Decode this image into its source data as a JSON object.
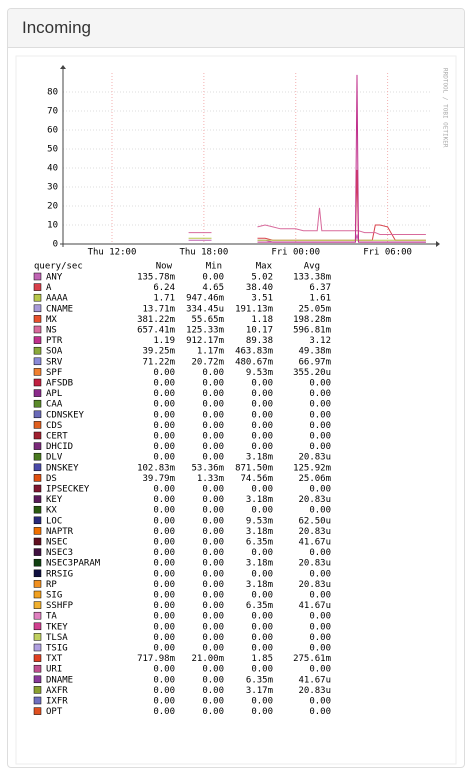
{
  "panel_title": "Incoming",
  "chart_data": {
    "type": "line",
    "watermark": "RRDTOOL / TOBI OETIKER",
    "xlim": [
      8.8,
      32.9
    ],
    "xticks": [
      {
        "value": 12,
        "label": "Thu 12:00"
      },
      {
        "value": 18,
        "label": "Thu 18:00"
      },
      {
        "value": 24,
        "label": "Fri 00:00"
      },
      {
        "value": 30,
        "label": "Fri 06:00"
      }
    ],
    "ylim": [
      0,
      90
    ],
    "yticks": [
      0,
      10,
      20,
      30,
      40,
      50,
      60,
      70,
      80
    ],
    "grid": true,
    "x": [
      17,
      17.5,
      18,
      18.5,
      19,
      21.5,
      22,
      22.5,
      23,
      23.5,
      24,
      24.5,
      25,
      25.4,
      25.55,
      25.7,
      26,
      26.5,
      27,
      27.5,
      27.9,
      28.0,
      28.1,
      28.5,
      29,
      29.2,
      29.5,
      30,
      30.5,
      31,
      31.5,
      32,
      32.5
    ],
    "legend_header": [
      "query/sec",
      "Now",
      "Min",
      "Max",
      "Avg"
    ],
    "series": [
      {
        "name": "ANY",
        "color": "#c064b4",
        "now": "135.78m",
        "min": "0.00",
        "max": "5.02",
        "avg": "133.38m",
        "values": [
          2,
          2,
          2,
          2,
          null,
          2,
          2,
          1,
          1,
          1,
          1,
          1,
          1,
          1,
          1,
          1,
          1,
          1,
          1,
          1,
          1,
          5,
          1,
          1,
          1,
          1,
          1,
          1,
          1,
          1,
          1,
          1,
          1
        ]
      },
      {
        "name": "A",
        "color": "#d8404a",
        "now": "6.24",
        "min": "4.65",
        "max": "38.40",
        "avg": "6.37",
        "values": [
          null,
          null,
          null,
          null,
          null,
          3,
          3,
          2,
          2,
          2,
          2,
          2,
          2,
          2,
          2,
          2,
          2,
          2,
          2,
          2,
          2,
          39,
          2,
          2,
          2,
          10,
          10,
          9,
          2,
          2,
          2,
          2,
          2
        ]
      },
      {
        "name": "AAAA",
        "color": "#b8c84c",
        "now": "1.71",
        "min": "947.46m",
        "max": "3.51",
        "avg": "1.61",
        "values": [
          3,
          3,
          3,
          3,
          null,
          2,
          2,
          2,
          2,
          2,
          2,
          2,
          2,
          2,
          2,
          2,
          2,
          2,
          2,
          2,
          2,
          2,
          2,
          2,
          2,
          2,
          2,
          2,
          2,
          2,
          2,
          2,
          2
        ]
      },
      {
        "name": "CNAME",
        "color": "#a89ad8",
        "now": "13.71m",
        "min": "334.45u",
        "max": "191.13m",
        "avg": "25.05m"
      },
      {
        "name": "MX",
        "color": "#e8502c",
        "now": "381.22m",
        "min": "55.65m",
        "max": "1.18",
        "avg": "198.28m"
      },
      {
        "name": "NS",
        "color": "#d86a9c",
        "now": "657.41m",
        "min": "125.33m",
        "max": "10.17",
        "avg": "596.81m",
        "values": [
          6,
          6,
          6,
          6,
          null,
          9,
          10,
          9,
          8,
          8,
          8,
          7,
          7,
          7,
          19,
          7,
          7,
          7,
          7,
          7,
          7,
          7,
          7,
          6,
          6,
          6,
          5,
          5,
          5,
          5,
          5,
          5,
          5
        ]
      },
      {
        "name": "PTR",
        "color": "#c0308c",
        "now": "1.19",
        "min": "912.17m",
        "max": "89.38",
        "avg": "3.12",
        "values": [
          null,
          null,
          null,
          null,
          null,
          1,
          1,
          1,
          1,
          1,
          1,
          1,
          1,
          1,
          1,
          1,
          1,
          1,
          1,
          1,
          1,
          89,
          1,
          1,
          1,
          1,
          1,
          1,
          1,
          1,
          1,
          1,
          1
        ]
      },
      {
        "name": "SOA",
        "color": "#8aa83c",
        "now": "39.25m",
        "min": "1.17m",
        "max": "463.83m",
        "avg": "49.38m"
      },
      {
        "name": "SRV",
        "color": "#8a8ad8",
        "now": "71.22m",
        "min": "20.72m",
        "max": "480.67m",
        "avg": "66.97m"
      },
      {
        "name": "SPF",
        "color": "#f08030",
        "now": "0.00",
        "min": "0.00",
        "max": "9.53m",
        "avg": "355.20u"
      },
      {
        "name": "AFSDB",
        "color": "#c02040",
        "now": "0.00",
        "min": "0.00",
        "max": "0.00",
        "avg": "0.00"
      },
      {
        "name": "APL",
        "color": "#8a2a8a",
        "now": "0.00",
        "min": "0.00",
        "max": "0.00",
        "avg": "0.00"
      },
      {
        "name": "CAA",
        "color": "#5a8a2a",
        "now": "0.00",
        "min": "0.00",
        "max": "0.00",
        "avg": "0.00"
      },
      {
        "name": "CDNSKEY",
        "color": "#6a6ab8",
        "now": "0.00",
        "min": "0.00",
        "max": "0.00",
        "avg": "0.00"
      },
      {
        "name": "CDS",
        "color": "#e06020",
        "now": "0.00",
        "min": "0.00",
        "max": "0.00",
        "avg": "0.00"
      },
      {
        "name": "CERT",
        "color": "#a02030",
        "now": "0.00",
        "min": "0.00",
        "max": "0.00",
        "avg": "0.00"
      },
      {
        "name": "DHCID",
        "color": "#7a2a7a",
        "now": "0.00",
        "min": "0.00",
        "max": "0.00",
        "avg": "0.00"
      },
      {
        "name": "DLV",
        "color": "#4a7a20",
        "now": "0.00",
        "min": "0.00",
        "max": "3.18m",
        "avg": "20.83u"
      },
      {
        "name": "DNSKEY",
        "color": "#4a4aa8",
        "now": "102.83m",
        "min": "53.36m",
        "max": "871.50m",
        "avg": "125.92m"
      },
      {
        "name": "DS",
        "color": "#e05010",
        "now": "39.79m",
        "min": "1.33m",
        "max": "74.56m",
        "avg": "25.06m"
      },
      {
        "name": "IPSECKEY",
        "color": "#801830",
        "now": "0.00",
        "min": "0.00",
        "max": "0.00",
        "avg": "0.00"
      },
      {
        "name": "KEY",
        "color": "#5a1a5a",
        "now": "0.00",
        "min": "0.00",
        "max": "3.18m",
        "avg": "20.83u"
      },
      {
        "name": "KX",
        "color": "#2a5a10",
        "now": "0.00",
        "min": "0.00",
        "max": "0.00",
        "avg": "0.00"
      },
      {
        "name": "LOC",
        "color": "#2a2a7a",
        "now": "0.00",
        "min": "0.00",
        "max": "9.53m",
        "avg": "62.50u"
      },
      {
        "name": "NAPTR",
        "color": "#f07000",
        "now": "0.00",
        "min": "0.00",
        "max": "3.18m",
        "avg": "20.83u"
      },
      {
        "name": "NSEC",
        "color": "#601020",
        "now": "0.00",
        "min": "0.00",
        "max": "6.35m",
        "avg": "41.67u"
      },
      {
        "name": "NSEC3",
        "color": "#401040",
        "now": "0.00",
        "min": "0.00",
        "max": "0.00",
        "avg": "0.00"
      },
      {
        "name": "NSEC3PARAM",
        "color": "#104010",
        "now": "0.00",
        "min": "0.00",
        "max": "3.18m",
        "avg": "20.83u"
      },
      {
        "name": "RRSIG",
        "color": "#101040",
        "now": "0.00",
        "min": "0.00",
        "max": "0.00",
        "avg": "0.00"
      },
      {
        "name": "RP",
        "color": "#f09020",
        "now": "0.00",
        "min": "0.00",
        "max": "3.18m",
        "avg": "20.83u"
      },
      {
        "name": "SIG",
        "color": "#f0a020",
        "now": "0.00",
        "min": "0.00",
        "max": "0.00",
        "avg": "0.00"
      },
      {
        "name": "SSHFP",
        "color": "#f0b030",
        "now": "0.00",
        "min": "0.00",
        "max": "6.35m",
        "avg": "41.67u"
      },
      {
        "name": "TA",
        "color": "#e080c0",
        "now": "0.00",
        "min": "0.00",
        "max": "0.00",
        "avg": "0.00"
      },
      {
        "name": "TKEY",
        "color": "#d04090",
        "now": "0.00",
        "min": "0.00",
        "max": "0.00",
        "avg": "0.00"
      },
      {
        "name": "TLSA",
        "color": "#c0d060",
        "now": "0.00",
        "min": "0.00",
        "max": "0.00",
        "avg": "0.00"
      },
      {
        "name": "TSIG",
        "color": "#b0a0e0",
        "now": "0.00",
        "min": "0.00",
        "max": "0.00",
        "avg": "0.00"
      },
      {
        "name": "TXT",
        "color": "#e04020",
        "now": "717.98m",
        "min": "21.00m",
        "max": "1.85",
        "avg": "275.61m"
      },
      {
        "name": "URI",
        "color": "#c05090",
        "now": "0.00",
        "min": "0.00",
        "max": "0.00",
        "avg": "0.00"
      },
      {
        "name": "DNAME",
        "color": "#8a3a9a",
        "now": "0.00",
        "min": "0.00",
        "max": "6.35m",
        "avg": "41.67u"
      },
      {
        "name": "AXFR",
        "color": "#8aa030",
        "now": "0.00",
        "min": "0.00",
        "max": "3.17m",
        "avg": "20.83u"
      },
      {
        "name": "IXFR",
        "color": "#7070c0",
        "now": "0.00",
        "min": "0.00",
        "max": "0.00",
        "avg": "0.00"
      },
      {
        "name": "OPT",
        "color": "#e05020",
        "now": "0.00",
        "min": "0.00",
        "max": "0.00",
        "avg": "0.00"
      }
    ]
  }
}
